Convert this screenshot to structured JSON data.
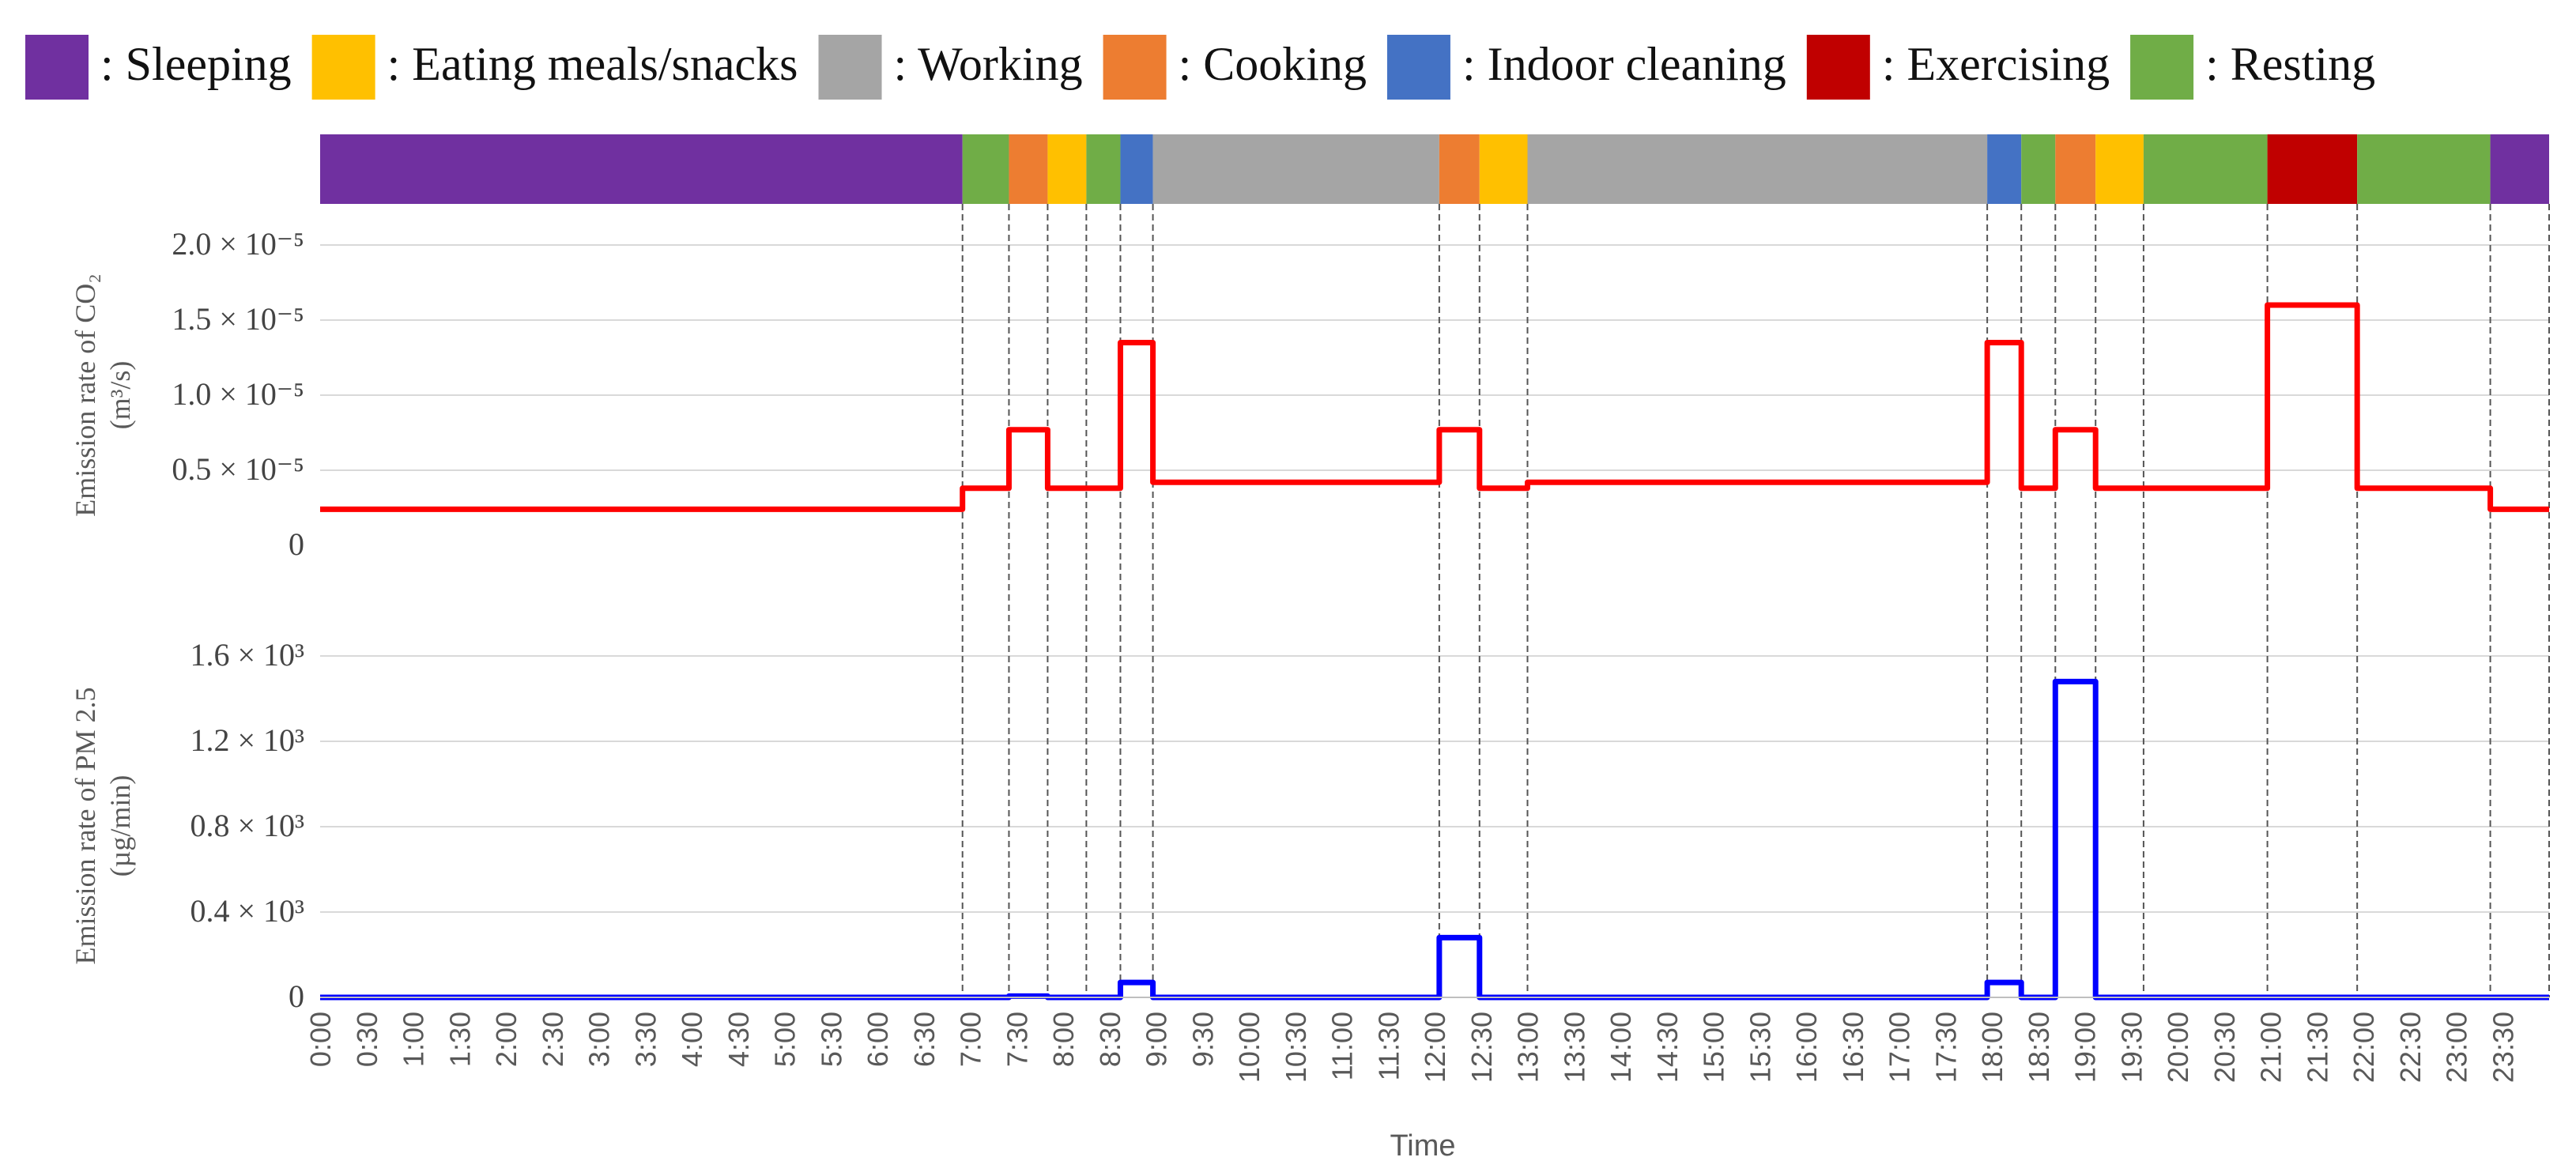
{
  "chart_data": {
    "type": "line",
    "xlabel": "Time",
    "time_labels": [
      "0:00",
      "0:30",
      "1:00",
      "1:30",
      "2:00",
      "2:30",
      "3:00",
      "3:30",
      "4:00",
      "4:30",
      "5:00",
      "5:30",
      "6:00",
      "6:30",
      "7:00",
      "7:30",
      "8:00",
      "8:30",
      "9:00",
      "9:30",
      "10:00",
      "10:30",
      "11:00",
      "11:30",
      "12:00",
      "12:30",
      "13:00",
      "13:30",
      "14:00",
      "14:30",
      "15:00",
      "15:30",
      "16:00",
      "16:30",
      "17:00",
      "17:30",
      "18:00",
      "18:30",
      "19:00",
      "19:30",
      "20:00",
      "20:30",
      "21:00",
      "21:30",
      "22:00",
      "22:30",
      "23:00",
      "23:30"
    ],
    "activities": [
      {
        "name": "Sleeping",
        "legend_label": ": Sleeping",
        "color": "#7030a0"
      },
      {
        "name": "Eating meals/snacks",
        "legend_label": ": Eating meals/snacks",
        "color": "#ffc000"
      },
      {
        "name": "Working",
        "legend_label": ": Working",
        "color": "#a5a5a5"
      },
      {
        "name": "Cooking",
        "legend_label": ": Cooking",
        "color": "#ed7d31"
      },
      {
        "name": "Indoor cleaning",
        "legend_label": ": Indoor cleaning",
        "color": "#4472c4"
      },
      {
        "name": "Exercising",
        "legend_label": ": Exercising",
        "color": "#c00000"
      },
      {
        "name": "Resting",
        "legend_label": ": Resting",
        "color": "#70ad47"
      }
    ],
    "schedule": [
      {
        "activity": "Sleeping",
        "start": "0:00",
        "end": "6:55"
      },
      {
        "activity": "Resting",
        "start": "6:55",
        "end": "7:25"
      },
      {
        "activity": "Cooking",
        "start": "7:25",
        "end": "7:50"
      },
      {
        "activity": "Eating meals/snacks",
        "start": "7:50",
        "end": "8:15"
      },
      {
        "activity": "Resting",
        "start": "8:15",
        "end": "8:37"
      },
      {
        "activity": "Indoor cleaning",
        "start": "8:37",
        "end": "8:58"
      },
      {
        "activity": "Working",
        "start": "8:58",
        "end": "12:03"
      },
      {
        "activity": "Cooking",
        "start": "12:03",
        "end": "12:29"
      },
      {
        "activity": "Eating meals/snacks",
        "start": "12:29",
        "end": "13:00"
      },
      {
        "activity": "Working",
        "start": "13:00",
        "end": "17:57"
      },
      {
        "activity": "Indoor cleaning",
        "start": "17:57",
        "end": "18:19"
      },
      {
        "activity": "Resting",
        "start": "18:19",
        "end": "18:41"
      },
      {
        "activity": "Cooking",
        "start": "18:41",
        "end": "19:07"
      },
      {
        "activity": "Eating meals/snacks",
        "start": "19:07",
        "end": "19:38"
      },
      {
        "activity": "Resting",
        "start": "19:38",
        "end": "20:58"
      },
      {
        "activity": "Exercising",
        "start": "20:58",
        "end": "21:56"
      },
      {
        "activity": "Resting",
        "start": "21:56",
        "end": "23:22"
      },
      {
        "activity": "Sleeping",
        "start": "23:22",
        "end": "24:00"
      }
    ],
    "panels": [
      {
        "id": "co2",
        "ylabel_line1": "Emission rate of CO₂",
        "ylabel_line2": "(m³/s)",
        "color": "#ff0000",
        "ylim": [
          0,
          2e-05
        ],
        "yticks": [
          {
            "value": 0,
            "label": "0"
          },
          {
            "value": 5e-06,
            "label": "0.5 × 10⁻⁵"
          },
          {
            "value": 1e-05,
            "label": "1.0 × 10⁻⁵"
          },
          {
            "value": 1.5e-05,
            "label": "1.5 × 10⁻⁵"
          },
          {
            "value": 2e-05,
            "label": "2.0 × 10⁻⁵"
          }
        ],
        "series": [
          {
            "name": "",
            "steps": [
              {
                "start": "0:00",
                "end": "6:55",
                "value": 2.4e-06
              },
              {
                "start": "6:55",
                "end": "7:25",
                "value": 3.8e-06
              },
              {
                "start": "7:25",
                "end": "7:50",
                "value": 7.7e-06
              },
              {
                "start": "7:50",
                "end": "8:37",
                "value": 3.8e-06
              },
              {
                "start": "8:37",
                "end": "8:58",
                "value": 1.35e-05
              },
              {
                "start": "8:58",
                "end": "12:03",
                "value": 4.2e-06
              },
              {
                "start": "12:03",
                "end": "12:29",
                "value": 7.7e-06
              },
              {
                "start": "12:29",
                "end": "13:00",
                "value": 3.8e-06
              },
              {
                "start": "13:00",
                "end": "17:57",
                "value": 4.2e-06
              },
              {
                "start": "17:57",
                "end": "18:19",
                "value": 1.35e-05
              },
              {
                "start": "18:19",
                "end": "18:41",
                "value": 3.8e-06
              },
              {
                "start": "18:41",
                "end": "19:07",
                "value": 7.7e-06
              },
              {
                "start": "19:07",
                "end": "20:58",
                "value": 3.8e-06
              },
              {
                "start": "20:58",
                "end": "21:56",
                "value": 1.6e-05
              },
              {
                "start": "21:56",
                "end": "23:22",
                "value": 3.8e-06
              },
              {
                "start": "23:22",
                "end": "24:00",
                "value": 2.4e-06
              }
            ]
          }
        ]
      },
      {
        "id": "pm25",
        "ylabel_line1": "Emission rate of PM 2.5",
        "ylabel_line2": "(µg/min)",
        "color": "#0000ff",
        "ylim": [
          0,
          1600.0
        ],
        "yticks": [
          {
            "value": 0,
            "label": "0"
          },
          {
            "value": 400.0,
            "label": "0.4 × 10³"
          },
          {
            "value": 800.0,
            "label": "0.8 × 10³"
          },
          {
            "value": 1200.0,
            "label": "1.2 × 10³"
          },
          {
            "value": 1600.0,
            "label": "1.6 × 10³"
          }
        ],
        "series": [
          {
            "name": "",
            "steps": [
              {
                "start": "0:00",
                "end": "7:25",
                "value": 0
              },
              {
                "start": "7:25",
                "end": "7:50",
                "value": 6
              },
              {
                "start": "7:50",
                "end": "8:37",
                "value": 0
              },
              {
                "start": "8:37",
                "end": "8:58",
                "value": 70
              },
              {
                "start": "8:58",
                "end": "12:03",
                "value": 0
              },
              {
                "start": "12:03",
                "end": "12:29",
                "value": 280
              },
              {
                "start": "12:29",
                "end": "17:57",
                "value": 0
              },
              {
                "start": "17:57",
                "end": "18:19",
                "value": 70
              },
              {
                "start": "18:19",
                "end": "18:41",
                "value": 0
              },
              {
                "start": "18:41",
                "end": "19:07",
                "value": 1480
              },
              {
                "start": "19:07",
                "end": "24:00",
                "value": 0
              }
            ]
          }
        ]
      }
    ],
    "grid": true,
    "legend_position": "top"
  }
}
